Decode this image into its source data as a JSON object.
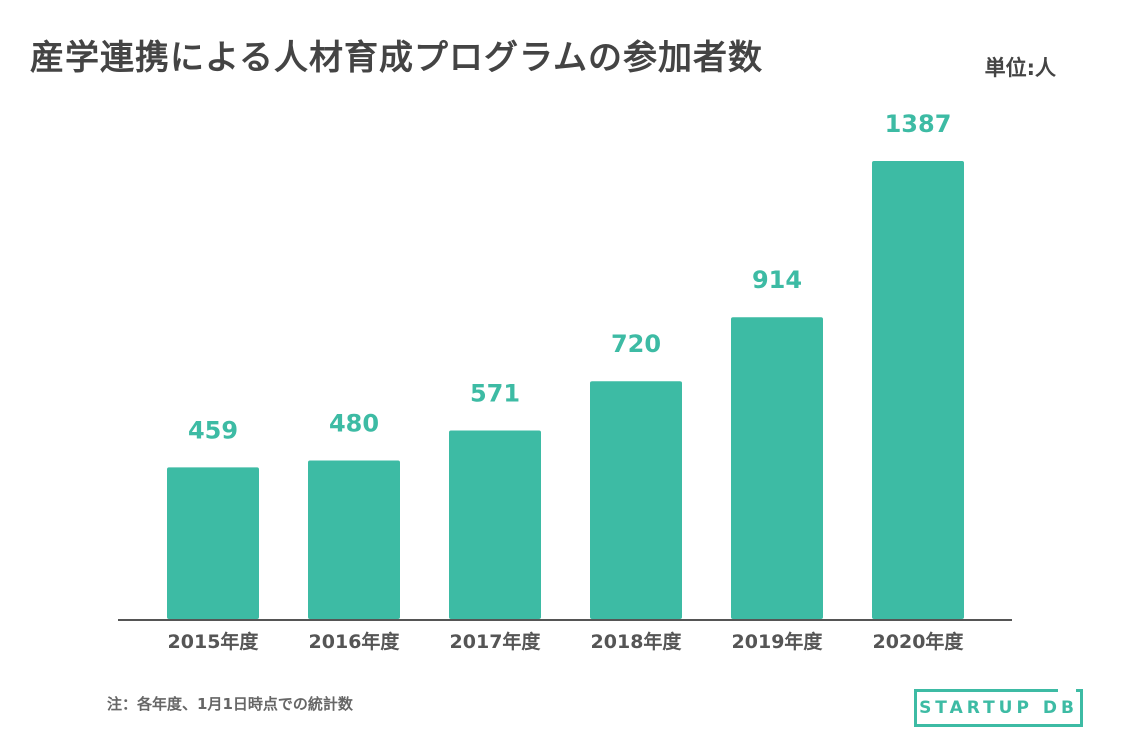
{
  "header": {
    "title": "産学連携による人材育成プログラムの参加者数",
    "unit": "単位:人"
  },
  "footer": {
    "note": "注：各年度、1月1日時点での統計数",
    "logo_text": "STARTUP DB"
  },
  "colors": {
    "bar": "#3dbba4",
    "value_label": "#3dbba4",
    "tick_label": "#555555",
    "axis": "#555555"
  },
  "chart_data": {
    "type": "bar",
    "title": "産学連携による人材育成プログラムの参加者数",
    "ylabel": "単位:人",
    "xlabel": "",
    "categories": [
      "2015年度",
      "2016年度",
      "2017年度",
      "2018年度",
      "2019年度",
      "2020年度"
    ],
    "values": [
      459,
      480,
      571,
      720,
      914,
      1387
    ],
    "ylim": [
      0,
      1387
    ],
    "grid": false,
    "data_labels": true
  }
}
